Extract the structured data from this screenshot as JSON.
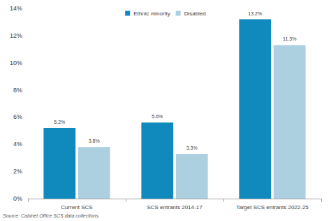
{
  "chart_data": {
    "type": "bar",
    "categories": [
      "Current SCS",
      "SCS entrants 2014-17",
      "Target SCS entrants 2022-25"
    ],
    "series": [
      {
        "name": "Ethnic minority",
        "color": "#1089bd",
        "values": [
          5.2,
          5.6,
          13.2
        ],
        "value_labels": [
          "5.2%",
          "5.6%",
          "13.2%"
        ]
      },
      {
        "name": "Disabled",
        "color": "#acd0e0",
        "values": [
          3.8,
          3.3,
          11.3
        ],
        "value_labels": [
          "3.8%",
          "3.3%",
          "11.3%"
        ]
      }
    ],
    "ylim": [
      0,
      14
    ],
    "yticks": [
      {
        "value": 0,
        "label": "0%"
      },
      {
        "value": 2,
        "label": "2%"
      },
      {
        "value": 4,
        "label": "4%"
      },
      {
        "value": 6,
        "label": "6%"
      },
      {
        "value": 8,
        "label": "8%"
      },
      {
        "value": 10,
        "label": "10%"
      },
      {
        "value": 12,
        "label": "12%"
      },
      {
        "value": 14,
        "label": "14%"
      }
    ],
    "annotations": [
      "Source: Cabinet Office SCS data collections"
    ],
    "data_labels": true,
    "legend": "top",
    "grid": false
  }
}
